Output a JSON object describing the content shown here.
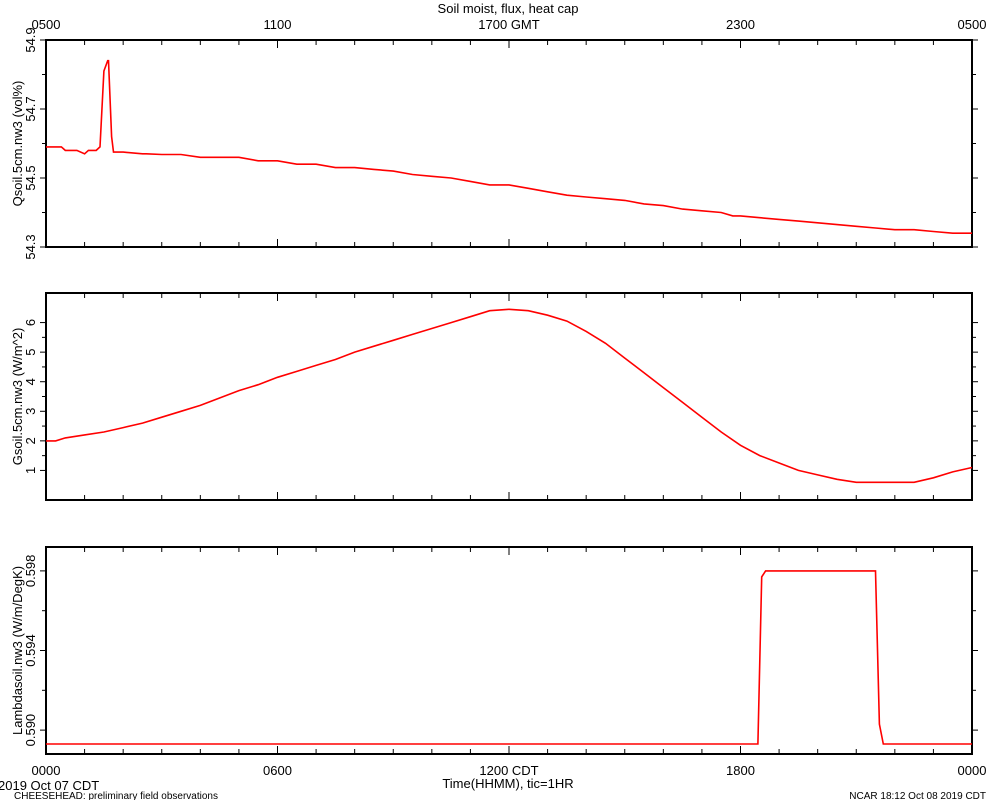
{
  "chart_data": {
    "type": "line",
    "title": "Soil moist, flux, heat cap",
    "top_axis": {
      "ticks": [
        "0500",
        "1100",
        "1700 GMT",
        "2300",
        "0500"
      ],
      "tick_hours": [
        0,
        6,
        12,
        18,
        24
      ]
    },
    "bottom_axis": {
      "ticks": [
        "0000",
        "0600",
        "1200 CDT",
        "1800",
        "0000"
      ],
      "tick_hours": [
        0,
        6,
        12,
        18,
        24
      ],
      "xlabel": "Time(HHMM), tic=1HR"
    },
    "xlim": [
      0,
      24
    ],
    "line_color": "#ff0000",
    "panels": [
      {
        "ylabel": "Qsoil.5cm.nw3 (vol%)",
        "ylim": [
          54.3,
          54.9
        ],
        "yticks": [
          54.3,
          54.5,
          54.7,
          54.9
        ],
        "ytick_labels": [
          "54.3",
          "54.5",
          "54.7",
          "54.9"
        ],
        "series": [
          {
            "x": [
              0,
              0.25,
              0.4,
              0.5,
              0.7,
              0.8,
              1.0,
              1.1,
              1.3,
              1.4,
              1.5,
              1.6,
              1.62,
              1.7,
              1.75,
              1.9,
              2.0,
              2.5,
              2.6,
              3.0,
              3.5,
              4.0,
              4.5,
              5.0,
              5.5,
              6.0,
              6.5,
              7.0,
              7.5,
              8.0,
              8.5,
              9.0,
              9.5,
              10.0,
              10.5,
              11.0,
              11.5,
              12.0,
              12.5,
              13.0,
              13.5,
              14.0,
              14.5,
              15.0,
              15.5,
              16.0,
              16.5,
              17.0,
              17.5,
              17.8,
              18.0,
              18.5,
              19.0,
              19.5,
              20.0,
              20.5,
              21.0,
              21.5,
              22.0,
              22.5,
              23.0,
              23.5,
              24.0
            ],
            "y": [
              54.59,
              54.59,
              54.59,
              54.58,
              54.58,
              54.58,
              54.57,
              54.58,
              54.58,
              54.59,
              54.81,
              54.84,
              54.84,
              54.62,
              54.575,
              54.575,
              54.575,
              54.57,
              54.57,
              54.568,
              54.568,
              54.56,
              54.56,
              54.56,
              54.55,
              54.55,
              54.54,
              54.54,
              54.53,
              54.53,
              54.525,
              54.52,
              54.51,
              54.505,
              54.5,
              54.49,
              54.48,
              54.48,
              54.47,
              54.46,
              54.45,
              54.445,
              54.44,
              54.435,
              54.425,
              54.42,
              54.41,
              54.405,
              54.4,
              54.39,
              54.39,
              54.385,
              54.38,
              54.375,
              54.37,
              54.365,
              54.36,
              54.355,
              54.35,
              54.35,
              54.345,
              54.34,
              54.34
            ]
          }
        ]
      },
      {
        "ylabel": "Gsoil.5cm.nw3 (W/m^2)",
        "ylim": [
          0,
          7
        ],
        "yticks": [
          1,
          2,
          3,
          4,
          5,
          6
        ],
        "ytick_labels": [
          "1",
          "2",
          "3",
          "4",
          "5",
          "6"
        ],
        "series": [
          {
            "x": [
              0,
              0.25,
              0.5,
              1.0,
              1.5,
              2.0,
              2.5,
              3.0,
              3.5,
              4.0,
              4.5,
              5.0,
              5.5,
              6.0,
              6.5,
              7.0,
              7.5,
              8.0,
              8.5,
              9.0,
              9.5,
              10.0,
              10.5,
              11.0,
              11.5,
              12.0,
              12.5,
              13.0,
              13.5,
              14.0,
              14.5,
              15.0,
              15.5,
              16.0,
              16.5,
              17.0,
              17.5,
              18.0,
              18.5,
              19.0,
              19.5,
              20.0,
              20.5,
              21.0,
              21.5,
              22.0,
              22.5,
              23.0,
              23.5,
              24.0
            ],
            "y": [
              2.0,
              2.0,
              2.1,
              2.2,
              2.3,
              2.45,
              2.6,
              2.8,
              3.0,
              3.2,
              3.45,
              3.7,
              3.9,
              4.15,
              4.35,
              4.55,
              4.75,
              5.0,
              5.2,
              5.4,
              5.6,
              5.8,
              6.0,
              6.2,
              6.4,
              6.45,
              6.4,
              6.25,
              6.05,
              5.7,
              5.3,
              4.8,
              4.3,
              3.8,
              3.3,
              2.8,
              2.3,
              1.85,
              1.5,
              1.25,
              1.0,
              0.85,
              0.7,
              0.6,
              0.6,
              0.6,
              0.6,
              0.75,
              0.95,
              1.1
            ]
          }
        ]
      },
      {
        "ylabel": "Lambdasoil.nw3 (W/m/DegK)",
        "ylim": [
          0.5888,
          0.5992
        ],
        "yticks": [
          0.59,
          0.594,
          0.598
        ],
        "ytick_labels": [
          "0.590",
          "0.594",
          "0.598"
        ],
        "series": [
          {
            "x": [
              0,
              18.45,
              18.55,
              18.65,
              21.5,
              21.6,
              21.7,
              24.0
            ],
            "y": [
              0.5893,
              0.5893,
              0.5977,
              0.598,
              0.598,
              0.5903,
              0.5893,
              0.5893
            ]
          }
        ]
      }
    ]
  },
  "footer": {
    "start_date": "2019 Oct 07 CDT",
    "project_note": "CHEESEHEAD: preliminary field observations",
    "generated": "NCAR 18:12 Oct 08 2019 CDT"
  }
}
